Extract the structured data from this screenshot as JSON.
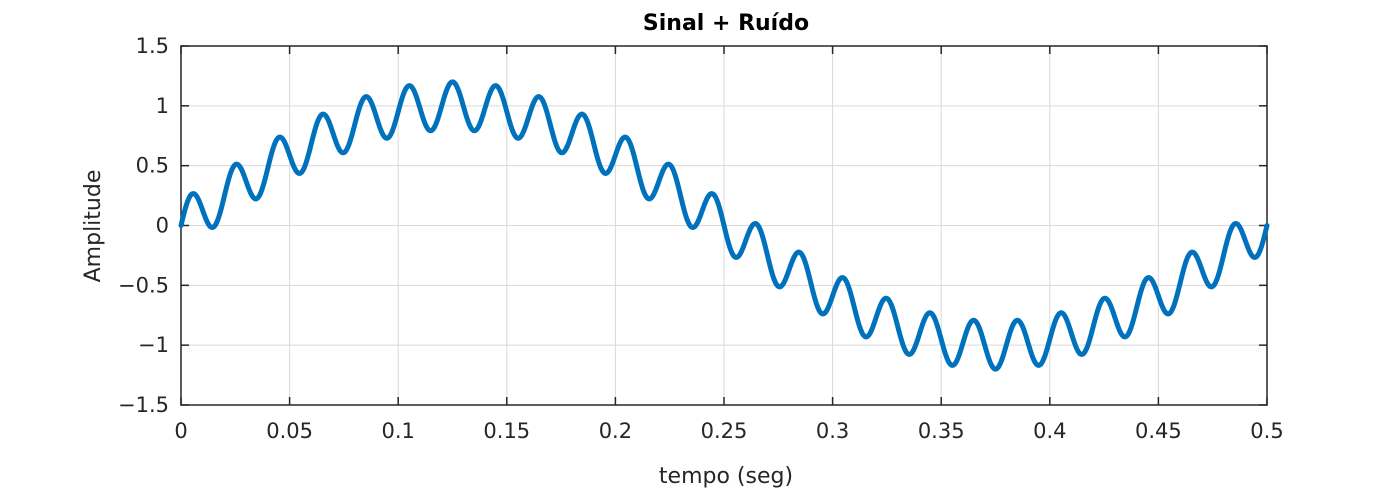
{
  "chart_data": {
    "type": "line",
    "title": "Sinal + Ruído",
    "xlabel": "tempo (seg)",
    "ylabel": "Amplitude",
    "xlim": [
      0,
      0.5
    ],
    "ylim": [
      -1.5,
      1.5
    ],
    "xticks": [
      "0",
      "0.05",
      "0.1",
      "0.15",
      "0.2",
      "0.25",
      "0.3",
      "0.35",
      "0.4",
      "0.45",
      "0.5"
    ],
    "yticks": [
      "1.5",
      "1",
      "0.5",
      "0",
      "-0.5",
      "-1",
      "-1.5"
    ],
    "grid": true,
    "series": [
      {
        "color": "#0072BD",
        "signal": {
          "amplitude": 1.0,
          "frequency_hz": 2
        },
        "noise": {
          "amplitude": 0.2,
          "frequency_hz": 50
        }
      }
    ]
  }
}
